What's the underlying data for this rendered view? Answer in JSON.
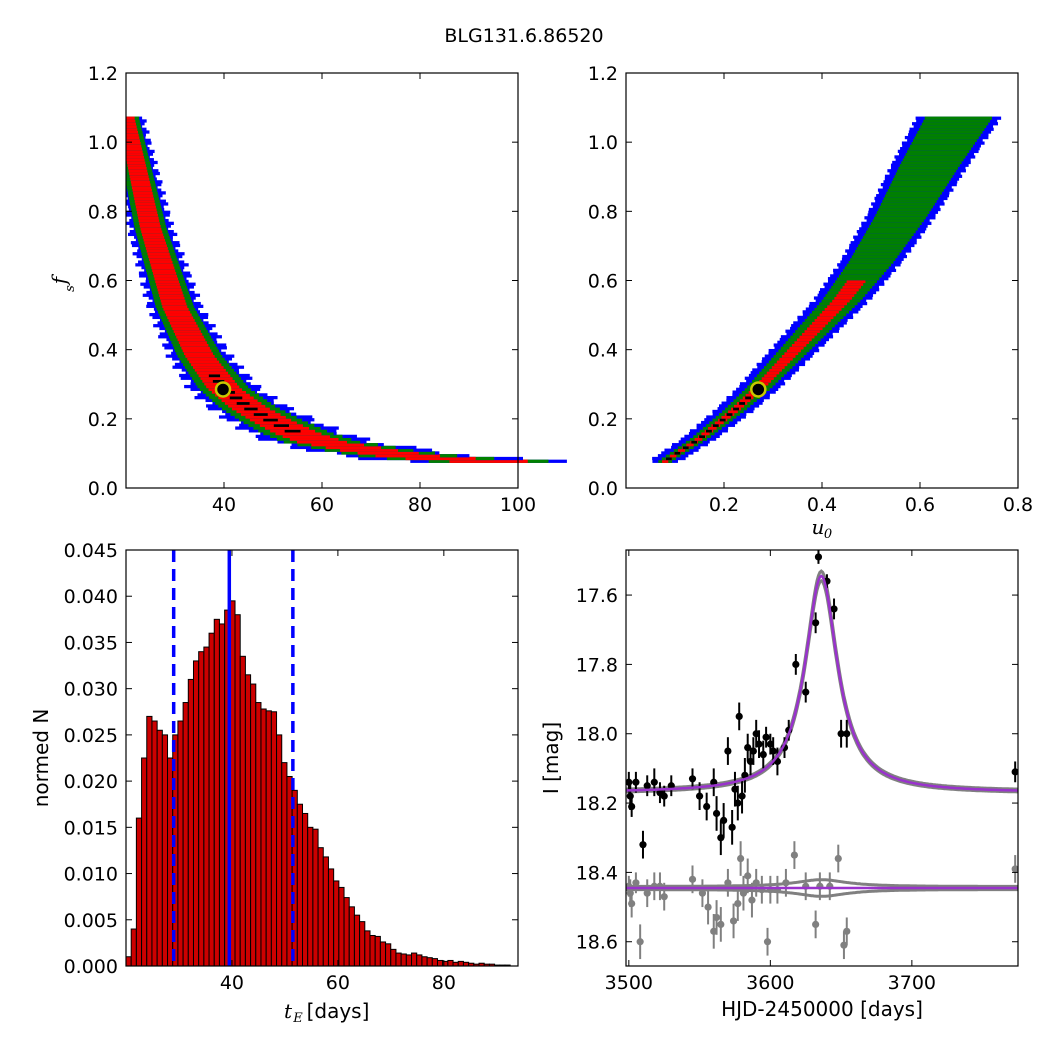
{
  "figure": {
    "title": "BLG131.6.86520"
  },
  "chart_data": [
    {
      "type": "heatmap",
      "panel": "tE-vs-fs",
      "xlabel": "",
      "ylabel": "f_s",
      "ylabel_main": "f",
      "ylabel_sub": "s",
      "xlim": [
        20,
        100
      ],
      "ylim": [
        0.0,
        1.2
      ],
      "xticks": [
        40,
        60,
        80,
        100
      ],
      "yticks": [
        0.0,
        0.2,
        0.4,
        0.6,
        0.8,
        1.0,
        1.2
      ],
      "xtick_labels": [
        "40",
        "60",
        "80",
        "100"
      ],
      "ytick_labels": [
        "0.0",
        "0.2",
        "0.4",
        "0.6",
        "0.8",
        "1.0",
        "1.2"
      ],
      "grid": false,
      "levels": [
        {
          "name": "3-sigma",
          "color": "#0000ff"
        },
        {
          "name": "2-sigma",
          "color": "#008000"
        },
        {
          "name": "1-sigma",
          "color": "#ff0000"
        },
        {
          "name": "best",
          "color": "#000000"
        }
      ],
      "band_center": [
        [
          20,
          1.07
        ],
        [
          25,
          0.75
        ],
        [
          30,
          0.52
        ],
        [
          35,
          0.38
        ],
        [
          40,
          0.285
        ],
        [
          45,
          0.23
        ],
        [
          50,
          0.19
        ],
        [
          55,
          0.155
        ],
        [
          60,
          0.13
        ],
        [
          70,
          0.105
        ],
        [
          80,
          0.085
        ],
        [
          94,
          0.075
        ]
      ],
      "best_fit": {
        "x": 39.8,
        "y": 0.285
      }
    },
    {
      "type": "heatmap",
      "panel": "u0-vs-fs",
      "xlabel": "u_0",
      "xlabel_main": "u",
      "xlabel_sub": "0",
      "ylabel": "",
      "xlim": [
        0.0,
        0.8
      ],
      "ylim": [
        0.0,
        1.2
      ],
      "xticks": [
        0.2,
        0.4,
        0.6,
        0.8
      ],
      "yticks": [
        0.0,
        0.2,
        0.4,
        0.6,
        0.8,
        1.0,
        1.2
      ],
      "xtick_labels": [
        "0.2",
        "0.4",
        "0.6",
        "0.8"
      ],
      "ytick_labels": [
        "0.0",
        "0.2",
        "0.4",
        "0.6",
        "0.8",
        "1.0",
        "1.2"
      ],
      "grid": false,
      "levels": [
        {
          "name": "3-sigma",
          "color": "#0000ff"
        },
        {
          "name": "2-sigma",
          "color": "#008000"
        },
        {
          "name": "1-sigma",
          "color": "#ff0000"
        },
        {
          "name": "best",
          "color": "#000000"
        }
      ],
      "band_center": [
        [
          0.08,
          0.075
        ],
        [
          0.15,
          0.14
        ],
        [
          0.22,
          0.22
        ],
        [
          0.27,
          0.285
        ],
        [
          0.32,
          0.36
        ],
        [
          0.38,
          0.45
        ],
        [
          0.44,
          0.54
        ],
        [
          0.5,
          0.65
        ],
        [
          0.56,
          0.78
        ],
        [
          0.62,
          0.93
        ],
        [
          0.68,
          1.07
        ]
      ],
      "best_fit": {
        "x": 0.27,
        "y": 0.285
      }
    },
    {
      "type": "bar",
      "panel": "tE-histogram",
      "xlabel": "t_E [days]",
      "xlabel_main": "t",
      "xlabel_sub": "E",
      "xlabel_unit": "[days]",
      "ylabel": "normed N",
      "xlim": [
        20,
        94
      ],
      "ylim": [
        0.0,
        0.045
      ],
      "xticks": [
        40,
        60,
        80
      ],
      "yticks": [
        0.0,
        0.005,
        0.01,
        0.015,
        0.02,
        0.025,
        0.03,
        0.035,
        0.04,
        0.045
      ],
      "xtick_labels": [
        "40",
        "60",
        "80"
      ],
      "ytick_labels": [
        "0.000",
        "0.005",
        "0.010",
        "0.015",
        "0.020",
        "0.025",
        "0.030",
        "0.035",
        "0.040",
        "0.045"
      ],
      "bar_color": "#cc0000",
      "bin_start": 20.0,
      "bin_width": 0.98,
      "values": [
        0.001,
        0.004,
        0.016,
        0.0225,
        0.027,
        0.0265,
        0.0255,
        0.025,
        0.0225,
        0.025,
        0.0265,
        0.0285,
        0.031,
        0.033,
        0.034,
        0.0345,
        0.036,
        0.0375,
        0.037,
        0.0385,
        0.0395,
        0.038,
        0.0335,
        0.0315,
        0.0305,
        0.0285,
        0.0278,
        0.0276,
        0.0275,
        0.025,
        0.022,
        0.0205,
        0.019,
        0.0175,
        0.0165,
        0.015,
        0.0148,
        0.0128,
        0.0118,
        0.0105,
        0.0092,
        0.0085,
        0.0074,
        0.0064,
        0.0055,
        0.0048,
        0.0038,
        0.0033,
        0.0032,
        0.0026,
        0.0024,
        0.0018,
        0.0014,
        0.0013,
        0.0012,
        0.0014,
        0.0012,
        0.001,
        0.0009,
        0.0008,
        0.0006,
        0.0005,
        0.0006,
        0.0004,
        0.0005,
        0.0004,
        0.0003,
        0.0002,
        0.0003,
        0.0002,
        0.0002,
        0.0001,
        0.0001,
        0.0001
      ],
      "vlines": [
        {
          "x": 29.0,
          "style": "dashed",
          "color": "#0000ff"
        },
        {
          "x": 39.5,
          "style": "solid",
          "color": "#0000ff"
        },
        {
          "x": 51.5,
          "style": "dashed",
          "color": "#0000ff"
        }
      ]
    },
    {
      "type": "scatter",
      "panel": "light-curve",
      "xlabel": "HJD-2450000 [days]",
      "ylabel": "I [mag]",
      "xlim": [
        3498,
        3775
      ],
      "ylim": [
        18.67,
        17.47
      ],
      "y_inverted": true,
      "xticks": [
        3500,
        3600,
        3700
      ],
      "yticks": [
        17.6,
        17.8,
        18.0,
        18.2,
        18.4,
        18.6
      ],
      "xtick_labels": [
        "3500",
        "3600",
        "3700"
      ],
      "ytick_labels": [
        "17.6",
        "17.8",
        "18.0",
        "18.2",
        "18.4",
        "18.6"
      ],
      "model": {
        "baseline": 18.17,
        "peak_time": 3636,
        "peak_mag": 17.545,
        "line_color": "#9932cc",
        "band_color": "#808080"
      },
      "residual_baseline": 18.445,
      "series": [
        {
          "name": "",
          "color": "#000000",
          "points": [
            [
              3500,
              18.14,
              0.03
            ],
            [
              3501,
              18.18,
              0.04
            ],
            [
              3502,
              18.21,
              0.03
            ],
            [
              3505,
              18.14,
              0.03
            ],
            [
              3510,
              18.32,
              0.04
            ],
            [
              3513,
              18.15,
              0.03
            ],
            [
              3518,
              18.14,
              0.04
            ],
            [
              3522,
              18.17,
              0.03
            ],
            [
              3525,
              18.18,
              0.03
            ],
            [
              3530,
              18.15,
              0.03
            ],
            [
              3545,
              18.13,
              0.03
            ],
            [
              3550,
              18.18,
              0.04
            ],
            [
              3555,
              18.21,
              0.04
            ],
            [
              3560,
              18.14,
              0.04
            ],
            [
              3562,
              18.23,
              0.05
            ],
            [
              3565,
              18.3,
              0.05
            ],
            [
              3567,
              18.25,
              0.05
            ],
            [
              3570,
              18.05,
              0.04
            ],
            [
              3573,
              18.27,
              0.05
            ],
            [
              3575,
              18.16,
              0.05
            ],
            [
              3577,
              18.2,
              0.05
            ],
            [
              3578,
              17.95,
              0.04
            ],
            [
              3580,
              18.18,
              0.05
            ],
            [
              3582,
              18.12,
              0.05
            ],
            [
              3584,
              18.04,
              0.04
            ],
            [
              3586,
              18.08,
              0.04
            ],
            [
              3588,
              18.05,
              0.04
            ],
            [
              3590,
              18.0,
              0.04
            ],
            [
              3592,
              18.03,
              0.04
            ],
            [
              3595,
              18.06,
              0.04
            ],
            [
              3597,
              18.01,
              0.03
            ],
            [
              3600,
              18.03,
              0.03
            ],
            [
              3602,
              18.05,
              0.04
            ],
            [
              3605,
              18.08,
              0.04
            ],
            [
              3610,
              18.04,
              0.03
            ],
            [
              3613,
              17.99,
              0.03
            ],
            [
              3618,
              17.8,
              0.03
            ],
            [
              3625,
              17.88,
              0.03
            ],
            [
              3632,
              17.68,
              0.03
            ],
            [
              3634,
              17.49,
              0.02
            ],
            [
              3640,
              17.56,
              0.02
            ],
            [
              3645,
              17.64,
              0.03
            ],
            [
              3650,
              18.0,
              0.04
            ],
            [
              3654,
              18.0,
              0.04
            ],
            [
              3773,
              18.11,
              0.03
            ]
          ]
        },
        {
          "name": "",
          "color": "#808080",
          "points": [
            [
              3500,
              18.44,
              0.03
            ],
            [
              3501,
              18.46,
              0.04
            ],
            [
              3502,
              18.49,
              0.04
            ],
            [
              3505,
              18.43,
              0.03
            ],
            [
              3508,
              18.6,
              0.05
            ],
            [
              3513,
              18.46,
              0.04
            ],
            [
              3518,
              18.44,
              0.04
            ],
            [
              3522,
              18.44,
              0.04
            ],
            [
              3525,
              18.47,
              0.04
            ],
            [
              3545,
              18.42,
              0.04
            ],
            [
              3552,
              18.46,
              0.04
            ],
            [
              3556,
              18.5,
              0.05
            ],
            [
              3560,
              18.57,
              0.05
            ],
            [
              3562,
              18.53,
              0.05
            ],
            [
              3565,
              18.55,
              0.05
            ],
            [
              3570,
              18.43,
              0.04
            ],
            [
              3574,
              18.54,
              0.05
            ],
            [
              3577,
              18.49,
              0.05
            ],
            [
              3579,
              18.36,
              0.05
            ],
            [
              3581,
              18.46,
              0.05
            ],
            [
              3584,
              18.41,
              0.05
            ],
            [
              3587,
              18.48,
              0.05
            ],
            [
              3590,
              18.43,
              0.04
            ],
            [
              3594,
              18.45,
              0.04
            ],
            [
              3598,
              18.6,
              0.04
            ],
            [
              3600,
              18.45,
              0.04
            ],
            [
              3605,
              18.45,
              0.04
            ],
            [
              3611,
              18.43,
              0.04
            ],
            [
              3617,
              18.35,
              0.04
            ],
            [
              3625,
              18.44,
              0.04
            ],
            [
              3632,
              18.55,
              0.04
            ],
            [
              3635,
              18.44,
              0.04
            ],
            [
              3642,
              18.44,
              0.04
            ],
            [
              3648,
              18.36,
              0.04
            ],
            [
              3652,
              18.61,
              0.04
            ],
            [
              3654,
              18.57,
              0.04
            ],
            [
              3773,
              18.39,
              0.04
            ]
          ]
        }
      ]
    }
  ]
}
